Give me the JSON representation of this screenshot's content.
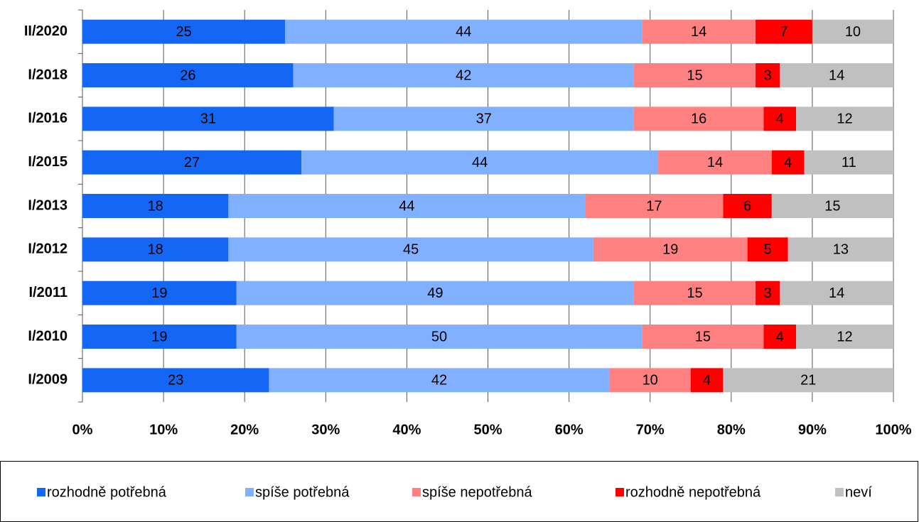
{
  "chart_data": {
    "type": "stacked-bar-horizontal",
    "categories": [
      "II/2020",
      "I/2018",
      "I/2016",
      "I/2015",
      "I/2013",
      "I/2012",
      "I/2011",
      "I/2010",
      "I/2009"
    ],
    "series": [
      {
        "name": "rozhodně potřebná",
        "color": "#1467f5",
        "values": [
          25,
          26,
          31,
          27,
          18,
          18,
          19,
          19,
          23
        ]
      },
      {
        "name": "spíše potřebná",
        "color": "#80b0ff",
        "values": [
          44,
          42,
          37,
          44,
          44,
          45,
          49,
          50,
          42
        ]
      },
      {
        "name": "spíše nepotřebná",
        "color": "#ff8080",
        "values": [
          14,
          15,
          16,
          14,
          17,
          19,
          15,
          15,
          10
        ]
      },
      {
        "name": "rozhodně nepotřebná",
        "color": "#ff0000",
        "values": [
          7,
          3,
          4,
          4,
          6,
          5,
          3,
          4,
          4
        ]
      },
      {
        "name": "neví",
        "color": "#c0c0c0",
        "values": [
          10,
          14,
          12,
          11,
          15,
          13,
          14,
          12,
          21
        ]
      }
    ],
    "xlim": [
      0,
      100
    ],
    "xticks": [
      {
        "value": 0,
        "label": "0%"
      },
      {
        "value": 10,
        "label": "10%"
      },
      {
        "value": 20,
        "label": "20%"
      },
      {
        "value": 30,
        "label": "30%"
      },
      {
        "value": 40,
        "label": "40%"
      },
      {
        "value": 50,
        "label": "50%"
      },
      {
        "value": 60,
        "label": "60%"
      },
      {
        "value": 70,
        "label": "70%"
      },
      {
        "value": 80,
        "label": "80%"
      },
      {
        "value": 90,
        "label": "90%"
      },
      {
        "value": 100,
        "label": "100%"
      }
    ],
    "grid": true,
    "legend": "bottom"
  }
}
